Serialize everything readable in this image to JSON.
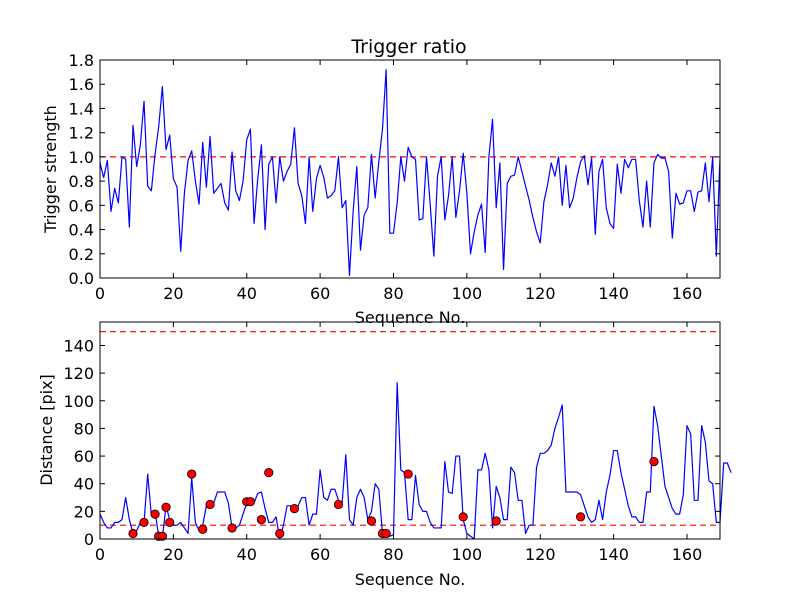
{
  "chart_data": [
    {
      "type": "line",
      "title": "Trigger ratio",
      "xlabel": "Sequence No.",
      "ylabel": "Trigger strength",
      "xlim": [
        0,
        169
      ],
      "ylim": [
        0,
        1.8
      ],
      "xticks": [
        0,
        20,
        40,
        60,
        80,
        100,
        120,
        140,
        160
      ],
      "yticks": [
        0.0,
        0.2,
        0.4,
        0.6,
        0.8,
        1.0,
        1.2,
        1.4,
        1.6,
        1.8
      ],
      "ytick_labels": [
        "0.0",
        "0.2",
        "0.4",
        "0.6",
        "0.8",
        "1.0",
        "1.2",
        "1.4",
        "1.6",
        "1.8"
      ],
      "line_color": "#0000ff",
      "threshold": {
        "value": 1.0,
        "color": "#ff0000",
        "style": "dashed"
      },
      "series": [
        {
          "name": "trigger strength",
          "y": [
            0.95,
            0.83,
            0.97,
            0.55,
            0.74,
            0.62,
            1.0,
            0.98,
            0.42,
            1.26,
            0.92,
            1.1,
            1.46,
            0.76,
            0.72,
            1.02,
            1.25,
            1.58,
            1.06,
            1.18,
            0.82,
            0.75,
            0.22,
            0.7,
            0.97,
            1.05,
            0.8,
            0.61,
            1.12,
            0.75,
            1.17,
            0.7,
            0.74,
            0.78,
            0.62,
            0.56,
            1.04,
            0.72,
            0.64,
            0.8,
            1.14,
            1.23,
            0.45,
            0.82,
            1.1,
            0.4,
            0.94,
            1.0,
            0.62,
            1.0,
            0.8,
            0.88,
            0.94,
            1.24,
            0.78,
            0.68,
            0.45,
            1.0,
            0.55,
            0.82,
            0.93,
            0.83,
            0.66,
            0.68,
            0.72,
            1.0,
            0.58,
            0.64,
            0.02,
            0.55,
            0.92,
            0.23,
            0.52,
            0.58,
            1.02,
            0.66,
            0.96,
            1.23,
            1.72,
            0.37,
            0.37,
            0.62,
            1.0,
            0.8,
            1.08,
            1.0,
            0.98,
            0.48,
            0.49,
            1.0,
            0.61,
            0.18,
            0.84,
            1.0,
            0.48,
            0.68,
            1.0,
            0.5,
            0.72,
            1.03,
            0.7,
            0.2,
            0.38,
            0.52,
            0.61,
            0.21,
            1.0,
            1.31,
            0.58,
            0.95,
            0.07,
            0.78,
            0.84,
            0.85,
            1.0,
            0.88,
            0.76,
            0.64,
            0.5,
            0.38,
            0.29,
            0.63,
            0.77,
            0.95,
            0.84,
            1.0,
            0.6,
            0.93,
            0.58,
            0.66,
            0.83,
            0.96,
            1.01,
            0.77,
            0.99,
            0.36,
            0.88,
            0.98,
            0.58,
            0.45,
            0.41,
            0.94,
            0.7,
            0.98,
            0.91,
            0.98,
            0.98,
            0.64,
            0.42,
            0.8,
            0.42,
            0.95,
            1.02,
            0.99,
            0.99,
            0.88,
            0.33,
            0.7,
            0.61,
            0.62,
            0.72,
            0.72,
            0.55,
            0.71,
            0.72,
            0.95,
            0.63,
            1.0,
            0.18,
            0.99
          ]
        }
      ]
    },
    {
      "type": "line",
      "title": "",
      "xlabel": "Sequence No.",
      "ylabel": "Distance [pix]",
      "xlim": [
        0,
        169
      ],
      "ylim": [
        0,
        157
      ],
      "xticks": [
        0,
        20,
        40,
        60,
        80,
        100,
        120,
        140,
        160
      ],
      "yticks": [
        0,
        20,
        40,
        60,
        80,
        100,
        120,
        140
      ],
      "ytick_labels": [
        "0",
        "20",
        "40",
        "60",
        "80",
        "100",
        "120",
        "140"
      ],
      "line_color": "#0000ff",
      "thresholds": [
        {
          "value": 10,
          "color": "#ff0000",
          "style": "dashed"
        },
        {
          "value": 150,
          "color": "#ff0000",
          "style": "dashed"
        }
      ],
      "marker_color": "#ff0000",
      "series": [
        {
          "name": "distance",
          "y": [
            18,
            12,
            8,
            8,
            12,
            12,
            14,
            30,
            14,
            4,
            6,
            12,
            12,
            47,
            17,
            20,
            2,
            1,
            24,
            14,
            10,
            10,
            12,
            8,
            4,
            44,
            12,
            6,
            10,
            24,
            26,
            26,
            34,
            34,
            34,
            26,
            8,
            8,
            10,
            18,
            26,
            26,
            26,
            33,
            34,
            22,
            12,
            12,
            16,
            0,
            10,
            24,
            24,
            24,
            24,
            30,
            30,
            10,
            18,
            18,
            50,
            30,
            28,
            36,
            36,
            28,
            26,
            61,
            14,
            10,
            30,
            36,
            30,
            14,
            20,
            40,
            36,
            4,
            4,
            2,
            3,
            113,
            50,
            48,
            14,
            14,
            46,
            25,
            20,
            20,
            12,
            8,
            8,
            8,
            56,
            34,
            33,
            60,
            60,
            14,
            4,
            2,
            0,
            50,
            50,
            62,
            50,
            8,
            38,
            30,
            14,
            14,
            52,
            48,
            28,
            28,
            4,
            10,
            10,
            52,
            62,
            62,
            64,
            68,
            80,
            88,
            97,
            34,
            34,
            34,
            34,
            32,
            24,
            16,
            12,
            14,
            28,
            14,
            34,
            46,
            64,
            64,
            48,
            36,
            24,
            16,
            16,
            12,
            12,
            34,
            34,
            96,
            82,
            60,
            38,
            30,
            22,
            18,
            18,
            32,
            82,
            76,
            28,
            28,
            82,
            70,
            42,
            40,
            12,
            12,
            55,
            55,
            48
          ]
        },
        {
          "name": "points",
          "points": [
            [
              9,
              4
            ],
            [
              12,
              12
            ],
            [
              15,
              18
            ],
            [
              16,
              2
            ],
            [
              17,
              2
            ],
            [
              18,
              23
            ],
            [
              19,
              12
            ],
            [
              25,
              47
            ],
            [
              28,
              7
            ],
            [
              30,
              25
            ],
            [
              36,
              8
            ],
            [
              40,
              27
            ],
            [
              41,
              27
            ],
            [
              44,
              14
            ],
            [
              46,
              48
            ],
            [
              49,
              4
            ],
            [
              53,
              22
            ],
            [
              65,
              25
            ],
            [
              74,
              13
            ],
            [
              77,
              4
            ],
            [
              78,
              4
            ],
            [
              84,
              47
            ],
            [
              99,
              16
            ],
            [
              108,
              13
            ],
            [
              131,
              16
            ],
            [
              151,
              56
            ]
          ]
        }
      ]
    }
  ]
}
